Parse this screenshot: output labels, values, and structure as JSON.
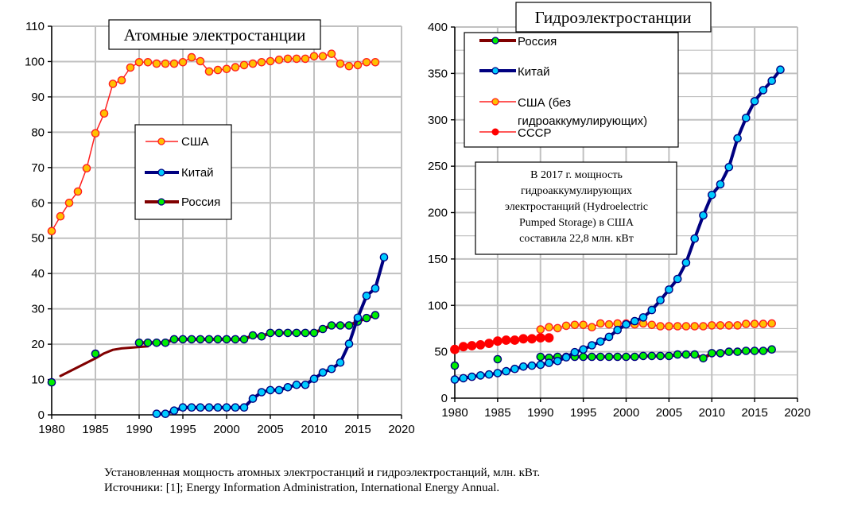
{
  "caption": {
    "line1": "Установленная мощность атомных электростанций и гидроэлектростанций, млн. кВт.",
    "line2": "Источники: [1]; Energy Information Administration, International Energy Annual."
  },
  "colors": {
    "usa_line": "#ff2020",
    "usa_marker": "#ffc000",
    "china_line": "#000080",
    "china_marker": "#00ccff",
    "russia_line": "#800000",
    "russia_marker": "#00ee00",
    "ussr": "#ff0000",
    "grid": "#c0c0c0"
  },
  "chart_data": [
    {
      "type": "line",
      "title": "Атомные электростанции",
      "xlabel": "",
      "ylabel": "",
      "xlim": [
        1980,
        2020
      ],
      "ylim": [
        0,
        110
      ],
      "xticks": [
        "1980",
        "1985",
        "1990",
        "1995",
        "2000",
        "2005",
        "2010",
        "2015",
        "2020"
      ],
      "yticks": [
        "0",
        "10",
        "20",
        "30",
        "40",
        "50",
        "60",
        "70",
        "80",
        "90",
        "100",
        "110"
      ],
      "grid": true,
      "legend_position": "center-left",
      "legend": [
        "США",
        "Китай",
        "Россия"
      ],
      "series": [
        {
          "name": "США",
          "style": "usa",
          "x": [
            1980,
            1981,
            1982,
            1983,
            1984,
            1985,
            1986,
            1987,
            1988,
            1989,
            1990,
            1991,
            1992,
            1993,
            1994,
            1995,
            1996,
            1997,
            1998,
            1999,
            2000,
            2001,
            2002,
            2003,
            2004,
            2005,
            2006,
            2007,
            2008,
            2009,
            2010,
            2011,
            2012,
            2013,
            2014,
            2015,
            2016,
            2017
          ],
          "y": [
            52,
            56.2,
            60,
            63.2,
            69.8,
            79.7,
            85.3,
            93.7,
            94.7,
            98.3,
            99.8,
            99.8,
            99.4,
            99.4,
            99.4,
            99.8,
            101.2,
            100.1,
            97.2,
            97.6,
            97.9,
            98.4,
            99,
            99.4,
            99.8,
            100.1,
            100.5,
            100.8,
            100.8,
            100.8,
            101.5,
            101.5,
            102.2,
            99.4,
            98.7,
            99,
            99.8,
            99.8
          ]
        },
        {
          "name": "Китай",
          "style": "china",
          "x": [
            1992,
            1993,
            1994,
            1995,
            1996,
            1997,
            1998,
            1999,
            2000,
            2001,
            2002,
            2003,
            2004,
            2005,
            2006,
            2007,
            2008,
            2009,
            2010,
            2011,
            2012,
            2013,
            2014,
            2015,
            2016,
            2017,
            2018
          ],
          "y": [
            0.3,
            0.3,
            1.2,
            2.1,
            2.1,
            2.1,
            2.1,
            2.1,
            2.1,
            2.1,
            2.1,
            4.6,
            6.4,
            7,
            7,
            7.8,
            8.5,
            8.5,
            10.2,
            12,
            13,
            14.8,
            20.1,
            27.5,
            33.7,
            35.8,
            44.6
          ]
        },
        {
          "name": "Россия",
          "style": "russia",
          "x": [
            1980,
            1985,
            1990,
            1991,
            1992,
            1993,
            1994,
            1995,
            1996,
            1997,
            1998,
            1999,
            2000,
            2001,
            2002,
            2003,
            2004,
            2005,
            2006,
            2007,
            2008,
            2009,
            2010,
            2011,
            2012,
            2013,
            2014,
            2015,
            2016,
            2017
          ],
          "y": [
            9.2,
            17.3,
            20.4,
            20.4,
            20.4,
            20.4,
            21.4,
            21.4,
            21.4,
            21.4,
            21.4,
            21.4,
            21.4,
            21.4,
            21.4,
            22.5,
            22.2,
            23.2,
            23.2,
            23.2,
            23.2,
            23.2,
            23.2,
            24.3,
            25.3,
            25.3,
            25.3,
            26.4,
            27.4,
            28.2
          ],
          "connected_from": 1990
        },
        {
          "name": "Россия (1981–1991)",
          "style": "russia-line-only",
          "x": [
            1981,
            1983,
            1985,
            1986,
            1987,
            1988,
            1989,
            1990,
            1991
          ],
          "y": [
            11,
            13.5,
            16,
            17.4,
            18.4,
            18.8,
            19,
            19.2,
            19.4
          ]
        }
      ]
    },
    {
      "type": "line",
      "title": "Гидроэлектростанции",
      "xlabel": "",
      "ylabel": "",
      "xlim": [
        1980,
        2020
      ],
      "ylim": [
        0,
        400
      ],
      "xticks": [
        "1980",
        "1985",
        "1990",
        "1995",
        "2000",
        "2005",
        "2010",
        "2015",
        "2020"
      ],
      "yticks": [
        "0",
        "50",
        "100",
        "150",
        "200",
        "250",
        "300",
        "350",
        "400"
      ],
      "grid": true,
      "legend_position": "top-left",
      "legend": [
        "Россия",
        "Китай",
        "США (без",
        "гидроаккумулирующих)",
        "СССР"
      ],
      "annotation": {
        "lines": [
          "В 2017 г. мощность",
          "гидроаккумулирующих",
          "электростанций (Hydroelectric",
          "Pumped Storage) в США",
          "составила 22,8 млн. кВт"
        ]
      },
      "series": [
        {
          "name": "Россия",
          "style": "russia",
          "x": [
            1980,
            1985,
            1990,
            1991,
            1992,
            1993,
            1994,
            1995,
            1996,
            1997,
            1998,
            1999,
            2000,
            2001,
            2002,
            2003,
            2004,
            2005,
            2006,
            2007,
            2008,
            2009,
            2010,
            2011,
            2012,
            2013,
            2014,
            2015,
            2016,
            2017
          ],
          "y": [
            35,
            42,
            44.5,
            43.5,
            44.5,
            44.5,
            44.5,
            44.5,
            44.5,
            44.5,
            44.5,
            44.5,
            44.5,
            44.5,
            45.5,
            45.5,
            45.5,
            45.5,
            47,
            47,
            47,
            43,
            48.5,
            48.5,
            50,
            50,
            51,
            51,
            51,
            52.5
          ],
          "connected_from": 1990
        },
        {
          "name": "Китай",
          "style": "china",
          "x": [
            1980,
            1981,
            1982,
            1983,
            1984,
            1985,
            1986,
            1987,
            1988,
            1989,
            1990,
            1991,
            1992,
            1993,
            1994,
            1995,
            1996,
            1997,
            1998,
            1999,
            2000,
            2001,
            2002,
            2003,
            2004,
            2005,
            2006,
            2007,
            2008,
            2009,
            2010,
            2011,
            2012,
            2013,
            2014,
            2015,
            2016,
            2017,
            2018
          ],
          "y": [
            20,
            21.5,
            23,
            24.5,
            25.5,
            27,
            29,
            31.5,
            34,
            35,
            36,
            38,
            40,
            44,
            49.5,
            52.5,
            57,
            61,
            66,
            73.5,
            79.5,
            83,
            87,
            95,
            105.5,
            117,
            128.5,
            146,
            172,
            197,
            219,
            230.5,
            249,
            280,
            302,
            320,
            332,
            342,
            354
          ]
        },
        {
          "name": "США (без гидроаккумулирующих)",
          "style": "usa",
          "x": [
            1990,
            1991,
            1992,
            1993,
            1994,
            1995,
            1996,
            1997,
            1998,
            1999,
            2000,
            2001,
            2002,
            2003,
            2004,
            2005,
            2006,
            2007,
            2008,
            2009,
            2010,
            2011,
            2012,
            2013,
            2014,
            2015,
            2016,
            2017
          ],
          "y": [
            74,
            76.5,
            75.5,
            78,
            79,
            79,
            76.5,
            80.5,
            79.5,
            80.5,
            80.5,
            79.5,
            80.5,
            79,
            77.5,
            77.5,
            77.5,
            77.5,
            77.5,
            77.5,
            78.5,
            78.5,
            78.5,
            78.5,
            80,
            80,
            80,
            80.5
          ]
        },
        {
          "name": "СССР",
          "style": "ussr",
          "x": [
            1980,
            1981,
            1982,
            1983,
            1984,
            1985,
            1986,
            1987,
            1988,
            1989,
            1990,
            1991
          ],
          "y": [
            52.5,
            55.5,
            56.5,
            57.5,
            59,
            61.5,
            62.5,
            62.5,
            64,
            64,
            65,
            65
          ]
        }
      ]
    }
  ]
}
